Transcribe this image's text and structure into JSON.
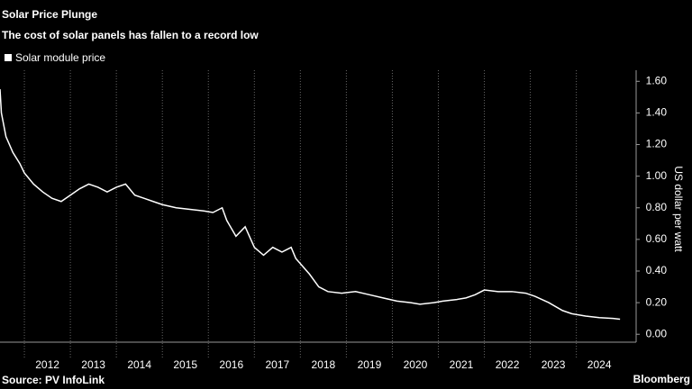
{
  "chart_data": {
    "type": "line",
    "title": "Solar Price Plunge",
    "subtitle": "The cost of solar panels has fallen to a record low",
    "y_label": "US dollar per watt",
    "source": "Source: PV InfoLink",
    "brand": "Bloomberg",
    "x": [
      2011.47,
      2011.5,
      2011.6,
      2011.75,
      2011.9,
      2012.0,
      2012.2,
      2012.4,
      2012.6,
      2012.8,
      2013.0,
      2013.2,
      2013.4,
      2013.6,
      2013.8,
      2014.0,
      2014.2,
      2014.4,
      2014.6,
      2014.8,
      2015.0,
      2015.3,
      2015.6,
      2015.9,
      2016.1,
      2016.3,
      2016.4,
      2016.6,
      2016.8,
      2017.0,
      2017.2,
      2017.4,
      2017.6,
      2017.8,
      2017.9,
      2018.2,
      2018.4,
      2018.6,
      2018.9,
      2019.2,
      2019.5,
      2019.8,
      2020.1,
      2020.4,
      2020.6,
      2020.9,
      2021.1,
      2021.4,
      2021.6,
      2021.8,
      2022.0,
      2022.3,
      2022.6,
      2022.9,
      2023.1,
      2023.4,
      2023.7,
      2023.9,
      2024.2,
      2024.5,
      2024.8,
      2024.95
    ],
    "series": [
      {
        "name": "Solar module price",
        "color": "#ffffff",
        "values": [
          1.55,
          1.4,
          1.25,
          1.15,
          1.08,
          1.02,
          0.95,
          0.9,
          0.86,
          0.84,
          0.88,
          0.92,
          0.95,
          0.93,
          0.9,
          0.93,
          0.95,
          0.88,
          0.86,
          0.84,
          0.82,
          0.8,
          0.79,
          0.78,
          0.77,
          0.8,
          0.72,
          0.62,
          0.68,
          0.55,
          0.5,
          0.55,
          0.52,
          0.55,
          0.48,
          0.38,
          0.3,
          0.27,
          0.26,
          0.27,
          0.25,
          0.23,
          0.21,
          0.2,
          0.19,
          0.2,
          0.21,
          0.22,
          0.23,
          0.25,
          0.28,
          0.27,
          0.27,
          0.26,
          0.24,
          0.2,
          0.15,
          0.13,
          0.115,
          0.105,
          0.1,
          0.095
        ]
      }
    ],
    "xlim": [
      2011.47,
      2025.3
    ],
    "xticks": [
      2012,
      2013,
      2014,
      2015,
      2016,
      2017,
      2018,
      2019,
      2020,
      2021,
      2022,
      2023,
      2024
    ],
    "ylim": [
      -0.05,
      1.67
    ],
    "yticks": [
      {
        "value": 0,
        "label": "0.00"
      },
      {
        "value": 0.2,
        "label": "0.20"
      },
      {
        "value": 0.4,
        "label": "0.40"
      },
      {
        "value": 0.6,
        "label": "0.60"
      },
      {
        "value": 0.8,
        "label": "0.80"
      },
      {
        "value": 1.0,
        "label": "1.00"
      },
      {
        "value": 1.2,
        "label": "1.20"
      },
      {
        "value": 1.4,
        "label": "1.40"
      },
      {
        "value": 1.6,
        "label": "1.60"
      }
    ],
    "xgrid": true
  }
}
